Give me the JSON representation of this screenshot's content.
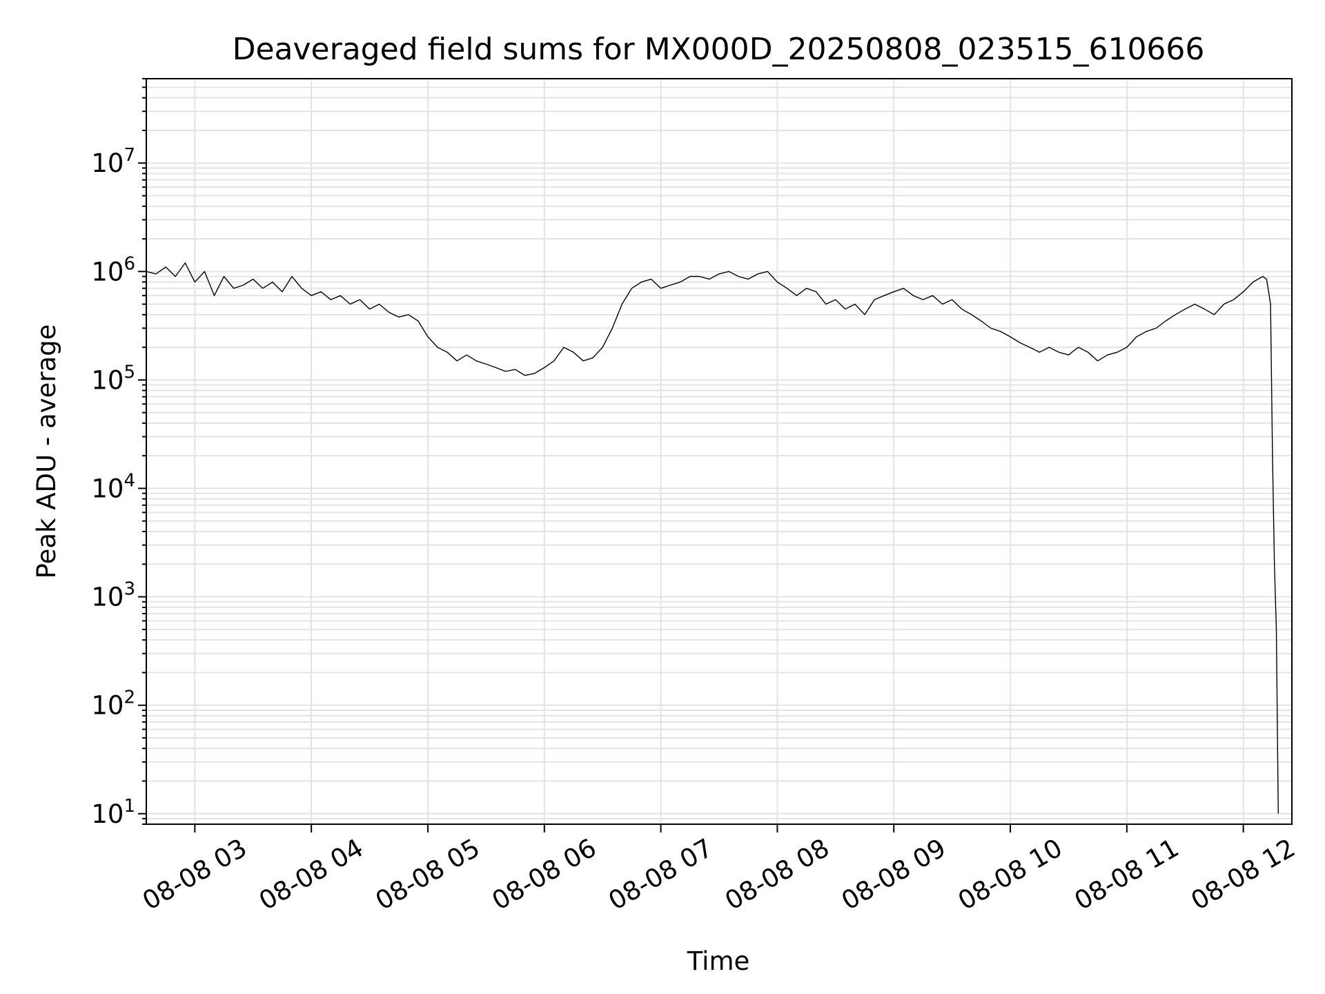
{
  "chart_data": {
    "type": "line",
    "title": "Deaveraged field sums for MX000D_20250808_023515_610666",
    "xlabel": "Time",
    "ylabel": "Peak ADU - average",
    "yscale": "log",
    "ylim": [
      8,
      60000000
    ],
    "xlim": [
      "2025-08-08 02:35",
      "2025-08-08 12:25"
    ],
    "grid": "major and minor",
    "line_color": "#000000",
    "x_ticks": [
      {
        "value": "2025-08-08 03:00",
        "label": "08-08 03"
      },
      {
        "value": "2025-08-08 04:00",
        "label": "08-08 04"
      },
      {
        "value": "2025-08-08 05:00",
        "label": "08-08 05"
      },
      {
        "value": "2025-08-08 06:00",
        "label": "08-08 06"
      },
      {
        "value": "2025-08-08 07:00",
        "label": "08-08 07"
      },
      {
        "value": "2025-08-08 08:00",
        "label": "08-08 08"
      },
      {
        "value": "2025-08-08 09:00",
        "label": "08-08 09"
      },
      {
        "value": "2025-08-08 10:00",
        "label": "08-08 10"
      },
      {
        "value": "2025-08-08 11:00",
        "label": "08-08 11"
      },
      {
        "value": "2025-08-08 12:00",
        "label": "08-08 12"
      }
    ],
    "y_ticks": [
      {
        "value": 10,
        "base": "10",
        "exp": "1"
      },
      {
        "value": 100,
        "base": "10",
        "exp": "2"
      },
      {
        "value": 1000,
        "base": "10",
        "exp": "3"
      },
      {
        "value": 10000,
        "base": "10",
        "exp": "4"
      },
      {
        "value": 100000,
        "base": "10",
        "exp": "5"
      },
      {
        "value": 1000000,
        "base": "10",
        "exp": "6"
      },
      {
        "value": 10000000,
        "base": "10",
        "exp": "7"
      }
    ],
    "series": [
      {
        "x": [
          "2025-08-08 02:35",
          "2025-08-08 02:40",
          "2025-08-08 02:45",
          "2025-08-08 02:50",
          "2025-08-08 02:55",
          "2025-08-08 03:00",
          "2025-08-08 03:05",
          "2025-08-08 03:10",
          "2025-08-08 03:15",
          "2025-08-08 03:20",
          "2025-08-08 03:25",
          "2025-08-08 03:30",
          "2025-08-08 03:35",
          "2025-08-08 03:40",
          "2025-08-08 03:45",
          "2025-08-08 03:50",
          "2025-08-08 03:55",
          "2025-08-08 04:00",
          "2025-08-08 04:05",
          "2025-08-08 04:10",
          "2025-08-08 04:15",
          "2025-08-08 04:20",
          "2025-08-08 04:25",
          "2025-08-08 04:30",
          "2025-08-08 04:35",
          "2025-08-08 04:40",
          "2025-08-08 04:45",
          "2025-08-08 04:50",
          "2025-08-08 04:55",
          "2025-08-08 05:00",
          "2025-08-08 05:05",
          "2025-08-08 05:10",
          "2025-08-08 05:15",
          "2025-08-08 05:20",
          "2025-08-08 05:25",
          "2025-08-08 05:30",
          "2025-08-08 05:35",
          "2025-08-08 05:40",
          "2025-08-08 05:45",
          "2025-08-08 05:50",
          "2025-08-08 05:55",
          "2025-08-08 06:00",
          "2025-08-08 06:05",
          "2025-08-08 06:10",
          "2025-08-08 06:15",
          "2025-08-08 06:20",
          "2025-08-08 06:25",
          "2025-08-08 06:30",
          "2025-08-08 06:35",
          "2025-08-08 06:40",
          "2025-08-08 06:45",
          "2025-08-08 06:50",
          "2025-08-08 06:55",
          "2025-08-08 07:00",
          "2025-08-08 07:05",
          "2025-08-08 07:10",
          "2025-08-08 07:15",
          "2025-08-08 07:20",
          "2025-08-08 07:25",
          "2025-08-08 07:30",
          "2025-08-08 07:35",
          "2025-08-08 07:40",
          "2025-08-08 07:45",
          "2025-08-08 07:50",
          "2025-08-08 07:55",
          "2025-08-08 08:00",
          "2025-08-08 08:05",
          "2025-08-08 08:10",
          "2025-08-08 08:15",
          "2025-08-08 08:20",
          "2025-08-08 08:25",
          "2025-08-08 08:30",
          "2025-08-08 08:35",
          "2025-08-08 08:40",
          "2025-08-08 08:45",
          "2025-08-08 08:50",
          "2025-08-08 08:55",
          "2025-08-08 09:00",
          "2025-08-08 09:05",
          "2025-08-08 09:10",
          "2025-08-08 09:15",
          "2025-08-08 09:20",
          "2025-08-08 09:25",
          "2025-08-08 09:30",
          "2025-08-08 09:35",
          "2025-08-08 09:40",
          "2025-08-08 09:45",
          "2025-08-08 09:50",
          "2025-08-08 09:55",
          "2025-08-08 10:00",
          "2025-08-08 10:05",
          "2025-08-08 10:10",
          "2025-08-08 10:15",
          "2025-08-08 10:20",
          "2025-08-08 10:25",
          "2025-08-08 10:30",
          "2025-08-08 10:35",
          "2025-08-08 10:40",
          "2025-08-08 10:45",
          "2025-08-08 10:50",
          "2025-08-08 10:55",
          "2025-08-08 11:00",
          "2025-08-08 11:05",
          "2025-08-08 11:10",
          "2025-08-08 11:15",
          "2025-08-08 11:20",
          "2025-08-08 11:25",
          "2025-08-08 11:30",
          "2025-08-08 11:35",
          "2025-08-08 11:40",
          "2025-08-08 11:45",
          "2025-08-08 11:50",
          "2025-08-08 11:55",
          "2025-08-08 12:00",
          "2025-08-08 12:05",
          "2025-08-08 12:10",
          "2025-08-08 12:12",
          "2025-08-08 12:14",
          "2025-08-08 12:15",
          "2025-08-08 12:16",
          "2025-08-08 12:17",
          "2025-08-08 12:18"
        ],
        "y": [
          1000000,
          950000,
          1100000,
          900000,
          1200000,
          800000,
          1000000,
          600000,
          900000,
          700000,
          750000,
          850000,
          700000,
          800000,
          650000,
          900000,
          700000,
          600000,
          650000,
          550000,
          600000,
          500000,
          550000,
          450000,
          500000,
          420000,
          380000,
          400000,
          350000,
          250000,
          200000,
          180000,
          150000,
          170000,
          150000,
          140000,
          130000,
          120000,
          125000,
          110000,
          115000,
          130000,
          150000,
          200000,
          180000,
          150000,
          160000,
          200000,
          300000,
          500000,
          700000,
          800000,
          850000,
          700000,
          750000,
          800000,
          900000,
          900000,
          850000,
          950000,
          1000000,
          900000,
          850000,
          950000,
          1000000,
          800000,
          700000,
          600000,
          700000,
          650000,
          500000,
          550000,
          450000,
          500000,
          400000,
          550000,
          600000,
          650000,
          700000,
          600000,
          550000,
          600000,
          500000,
          550000,
          450000,
          400000,
          350000,
          300000,
          280000,
          250000,
          220000,
          200000,
          180000,
          200000,
          180000,
          170000,
          200000,
          180000,
          150000,
          170000,
          180000,
          200000,
          250000,
          280000,
          300000,
          350000,
          400000,
          450000,
          500000,
          450000,
          400000,
          500000,
          550000,
          650000,
          800000,
          900000,
          850000,
          500000,
          20000,
          2000,
          500,
          10
        ]
      }
    ]
  }
}
